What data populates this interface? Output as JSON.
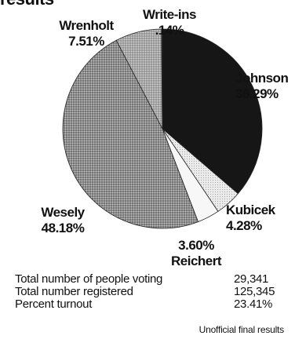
{
  "heading": "results",
  "chart_data": {
    "type": "pie",
    "slices": [
      {
        "label": "Johnson",
        "value": 36.29,
        "value_label": "36.29%",
        "color": "#161616",
        "pattern": "solid"
      },
      {
        "label": "Kubicek",
        "value": 4.28,
        "value_label": "4.28%",
        "color": "#e2e2e2",
        "pattern": "light"
      },
      {
        "label": "Reichert",
        "value": 3.6,
        "value_label": "3.60%",
        "color": "#f7f7f7",
        "pattern": "white"
      },
      {
        "label": "Wesely",
        "value": 48.18,
        "value_label": "48.18%",
        "color": "#8c8c8c",
        "pattern": "dots"
      },
      {
        "label": "Wrenholt",
        "value": 7.51,
        "value_label": "7.51%",
        "color": "#a2a2a2",
        "pattern": "dots-light"
      },
      {
        "label": "Write-ins",
        "value": 0.14,
        "value_label": ".14%",
        "color": "#3a3a3a",
        "pattern": "solid"
      }
    ]
  },
  "stats": [
    {
      "label": "Total number of people voting",
      "value": "29,341"
    },
    {
      "label": "Total number registered",
      "value": "125,345"
    },
    {
      "label": "Percent turnout",
      "value": "23.41%"
    }
  ],
  "footnote": "Unofficial final results"
}
